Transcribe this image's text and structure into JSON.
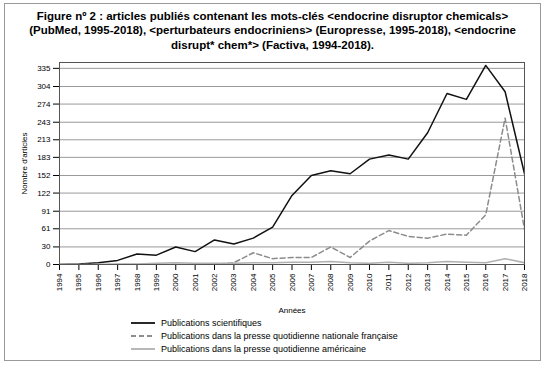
{
  "chart_data": {
    "type": "line",
    "title": "Figure nº 2 : articles publiés contenant les mots-clés <endocrine disruptor chemicals> (PubMed, 1995-2018), <perturbateurs endocriniens> (Europresse, 1995-2018), <endocrine disrupt* chem*> (Factiva, 1994-2018).",
    "x_label": "Années",
    "y_label": "Nombre d'articles",
    "x": [
      1994,
      1995,
      1996,
      1997,
      1998,
      1999,
      2000,
      2001,
      2002,
      2003,
      2004,
      2005,
      2006,
      2007,
      2008,
      2009,
      2010,
      2011,
      2012,
      2013,
      2014,
      2015,
      2016,
      2017,
      2018
    ],
    "series": [
      {
        "name": "Publications scientifiques",
        "color": "#111111",
        "line_style": "solid",
        "values": [
          0,
          1,
          3,
          7,
          18,
          16,
          30,
          22,
          42,
          35,
          45,
          64,
          118,
          152,
          160,
          155,
          180,
          187,
          180,
          225,
          292,
          282,
          340,
          295,
          155
        ]
      },
      {
        "name": "Publications dans la presse quotidienne nationale française",
        "color": "#8c8c8c",
        "line_style": "dashed",
        "values": [
          0,
          0,
          0,
          0,
          0,
          0,
          0,
          0,
          0,
          3,
          20,
          10,
          12,
          12,
          30,
          12,
          40,
          58,
          48,
          45,
          52,
          50,
          85,
          250,
          60
        ]
      },
      {
        "name": "Publications dans la presse quotidienne américaine",
        "color": "#b0b0b0",
        "line_style": "solid",
        "values": [
          0,
          0,
          0,
          1,
          1,
          2,
          3,
          2,
          2,
          2,
          3,
          3,
          4,
          4,
          5,
          3,
          2,
          4,
          2,
          3,
          5,
          4,
          3,
          10,
          3
        ]
      }
    ],
    "xlim": [
      1994,
      2018
    ],
    "xticks": [
      1994,
      1995,
      1996,
      1997,
      1998,
      1999,
      2000,
      2001,
      2002,
      2003,
      2004,
      2005,
      2006,
      2007,
      2008,
      2009,
      2010,
      2011,
      2012,
      2013,
      2014,
      2015,
      2016,
      2017,
      2018
    ],
    "ylim": [
      0,
      345
    ],
    "yticks": [
      0,
      30,
      61,
      91,
      122,
      152,
      183,
      213,
      243,
      274,
      304,
      335
    ],
    "grid": true,
    "legend": "bottom"
  }
}
